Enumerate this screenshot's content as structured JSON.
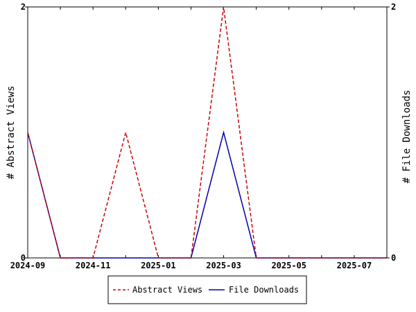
{
  "chart_data": {
    "type": "line",
    "x": [
      "2024-09",
      "2024-10",
      "2024-11",
      "2024-12",
      "2025-01",
      "2025-02",
      "2025-03",
      "2025-04",
      "2025-05",
      "2025-06",
      "2025-07",
      "2025-08"
    ],
    "x_tick_labels": [
      "2024-09",
      "2024-11",
      "2025-01",
      "2025-03",
      "2025-05",
      "2025-07"
    ],
    "series": [
      {
        "name": "Abstract Views",
        "axis": "left",
        "color": "#cc0000",
        "dash": "dashed",
        "values": [
          1,
          0,
          0,
          1,
          0,
          0,
          2,
          0,
          0,
          0,
          0,
          0
        ]
      },
      {
        "name": "File Downloads",
        "axis": "right",
        "color": "#0000aa",
        "dash": "solid",
        "values": [
          1,
          0,
          0,
          0,
          0,
          0,
          1,
          0,
          0,
          0,
          0,
          0
        ]
      }
    ],
    "ylabel_left": "# Abstract Views",
    "ylabel_right": "# File Downloads",
    "ylim_left": [
      0,
      2
    ],
    "ylim_right": [
      0,
      2
    ],
    "y_ticks_left": [
      "0",
      "2"
    ],
    "y_ticks_right": [
      "0",
      "2"
    ],
    "legend_position": "bottom",
    "grid": false
  }
}
